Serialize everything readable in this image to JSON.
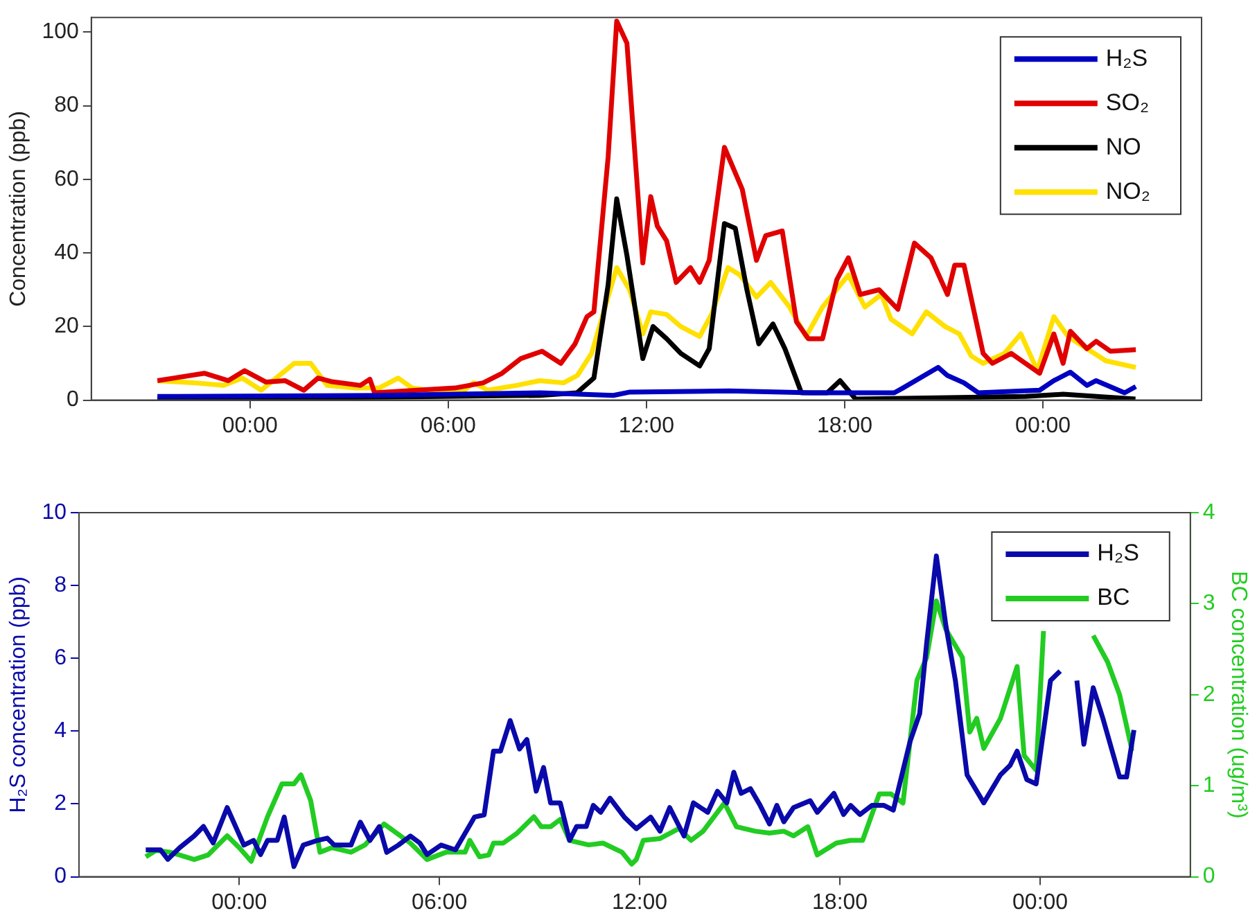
{
  "chart_data": [
    {
      "type": "line",
      "ylabel": "Concentration (ppb)",
      "xlim": [
        -4.8,
        28.8
      ],
      "ylim": [
        0,
        104
      ],
      "xticks": [
        {
          "value": 0,
          "label": "00:00"
        },
        {
          "value": 6,
          "label": "06:00"
        },
        {
          "value": 12,
          "label": "12:00"
        },
        {
          "value": 18,
          "label": "18:00"
        },
        {
          "value": 24,
          "label": "00:00"
        }
      ],
      "yticks": [
        0,
        20,
        40,
        60,
        80,
        100
      ],
      "grid": false,
      "legend": "top right",
      "marker": "none",
      "line_style": "solid",
      "series": [
        {
          "name": "H₂S",
          "color": "#0000c0",
          "x": [
            -2.8,
            4,
            8.8,
            11,
            11.5,
            14.5,
            17,
            19.5,
            19.76,
            20.83,
            21.11,
            21.61,
            22.04,
            23.9,
            24.33,
            24.83,
            25.33,
            25.61,
            26.47,
            26.81
          ],
          "values": [
            1,
            1.3,
            2,
            1.3,
            2.2,
            2.5,
            2,
            2,
            3.3,
            8.9,
            6.7,
            4.7,
            2,
            2.7,
            5.3,
            7.6,
            4,
            5.3,
            2,
            3.7
          ]
        },
        {
          "name": "SO₂",
          "color": "#e00000",
          "x": [
            -2.8,
            -1.37,
            -0.66,
            -0.16,
            0.49,
            1.06,
            1.63,
            2.06,
            2.49,
            3.34,
            3.63,
            3.77,
            5.06,
            6.2,
            7.06,
            7.63,
            8.2,
            8.84,
            9.41,
            9.84,
            10.2,
            10.41,
            10.84,
            11.1,
            11.41,
            11.89,
            12.13,
            12.33,
            12.61,
            12.9,
            13.33,
            13.61,
            13.9,
            14.36,
            14.9,
            15.33,
            15.61,
            16.11,
            16.54,
            16.9,
            17.33,
            17.76,
            18.11,
            18.47,
            19.04,
            19.61,
            20.11,
            20.61,
            21.11,
            21.33,
            21.61,
            22.19,
            22.47,
            23.04,
            23.9,
            24.33,
            24.61,
            24.83,
            25.33,
            25.61,
            26.04,
            26.81
          ],
          "values": [
            5.3,
            7.3,
            5.3,
            8,
            4.9,
            5.3,
            2.7,
            6,
            5,
            4,
            5.7,
            2,
            2.7,
            3.3,
            4.7,
            7.3,
            11.3,
            13.3,
            10,
            15.3,
            22.7,
            24,
            66,
            103,
            97,
            37.3,
            55.3,
            47.3,
            43.3,
            32,
            36,
            32,
            38,
            68.7,
            57.3,
            38,
            44.7,
            46,
            21.3,
            16.7,
            16.7,
            32.7,
            38.7,
            28.7,
            30,
            24.7,
            42.7,
            38.7,
            28.7,
            36.7,
            36.7,
            12.7,
            10,
            12.7,
            7.3,
            18,
            10,
            18.7,
            14,
            16,
            13.3,
            13.7
          ]
        },
        {
          "name": "NO",
          "color": "#000000",
          "x": [
            -2.8,
            4,
            8.77,
            9.9,
            10.41,
            10.84,
            11.1,
            11.41,
            11.89,
            12.2,
            12.61,
            13.04,
            13.61,
            13.9,
            14.36,
            14.69,
            15.04,
            15.4,
            15.83,
            16.19,
            16.69,
            17.47,
            17.86,
            18.33,
            23.47,
            24.61,
            26.8
          ],
          "values": [
            0.5,
            0.8,
            1.3,
            2,
            6,
            31.3,
            54.7,
            39.3,
            11.3,
            20,
            16.7,
            12.7,
            9.3,
            14,
            48,
            46.7,
            30,
            15.3,
            20.7,
            14,
            2,
            2,
            5.3,
            0.3,
            1,
            1.6,
            0.3
          ]
        },
        {
          "name": "NO₂",
          "color": "#ffe000",
          "x": [
            -2.8,
            -1.66,
            -0.8,
            -0.23,
            0.34,
            1.34,
            1.84,
            2.34,
            3.2,
            3.91,
            4.49,
            4.91,
            5.91,
            6.49,
            6.77,
            7.2,
            8.06,
            8.77,
            9.49,
            9.91,
            10.34,
            11.1,
            11.49,
            11.89,
            12.13,
            12.61,
            13.04,
            13.61,
            13.97,
            14.47,
            14.83,
            15.33,
            15.76,
            16.33,
            16.83,
            17.33,
            18.11,
            18.61,
            19.11,
            19.4,
            20.04,
            20.47,
            21.04,
            21.47,
            21.83,
            22.19,
            22.83,
            23.33,
            23.83,
            24.33,
            24.76,
            25.33,
            25.9,
            26.81
          ],
          "values": [
            5.3,
            4.7,
            4,
            6,
            2.7,
            10,
            10,
            4,
            3.3,
            3.3,
            6,
            3.3,
            2,
            2.7,
            4.7,
            2.7,
            4,
            5.3,
            4.7,
            6.7,
            12.7,
            36,
            30,
            18,
            24,
            23.3,
            20,
            17.3,
            23.3,
            36,
            34,
            28,
            32,
            25.3,
            17.3,
            25.3,
            34,
            25.3,
            28.7,
            22,
            18,
            24,
            20,
            18,
            12,
            10,
            12.7,
            18,
            8,
            22.7,
            17.3,
            14,
            10.7,
            8.9
          ]
        }
      ]
    },
    {
      "type": "line",
      "ylabel": "H₂S concentration (ppb)",
      "y2label": "BC concentration (ug/m³)",
      "xlim": [
        -4.8,
        28.5
      ],
      "ylim": [
        0,
        10
      ],
      "y2lim": [
        0,
        4
      ],
      "xticks": [
        {
          "value": 0,
          "label": "00:00"
        },
        {
          "value": 6,
          "label": "06:00"
        },
        {
          "value": 12,
          "label": "12:00"
        },
        {
          "value": 18,
          "label": "18:00"
        },
        {
          "value": 24,
          "label": "00:00"
        }
      ],
      "yticks": [
        0,
        2,
        4,
        6,
        8,
        10
      ],
      "y2ticks": [
        0,
        1,
        2,
        3,
        4
      ],
      "grid": false,
      "legend": "top right",
      "marker": "none",
      "line_style": "solid",
      "series": [
        {
          "name": "H₂S",
          "color": "#0a0aaa",
          "axis": "y",
          "x": [
            -2.8,
            -2.36,
            -2.14,
            -1.78,
            -1.35,
            -1.07,
            -0.78,
            -0.36,
            0.14,
            0.43,
            0.64,
            0.85,
            1.14,
            1.35,
            1.64,
            1.92,
            2.35,
            2.64,
            2.85,
            3.35,
            3.63,
            3.92,
            4.2,
            4.42,
            4.77,
            5.13,
            5.41,
            5.63,
            6.05,
            6.48,
            7.05,
            7.34,
            7.62,
            7.83,
            8.12,
            8.4,
            8.62,
            8.9,
            9.12,
            9.33,
            9.62,
            9.9,
            10.11,
            10.4,
            10.61,
            10.83,
            11.11,
            11.54,
            11.9,
            12.33,
            12.61,
            12.9,
            13.33,
            13.61,
            14.04,
            14.33,
            14.61,
            14.82,
            15.04,
            15.32,
            15.61,
            15.89,
            16.11,
            16.32,
            16.61,
            17.11,
            17.32,
            17.82,
            18.11,
            18.32,
            18.6,
            18.96,
            19.32,
            19.6,
            20.1,
            20.39,
            20.6,
            20.89,
            21.17,
            21.46,
            21.81,
            22.31,
            22.81,
            23.1,
            23.31,
            23.6,
            23.88,
            24.31,
            24.6,
            24.85,
            25.1,
            25.31,
            25.59,
            25.88,
            26.38,
            26.59,
            26.81
          ],
          "values": [
            0.74,
            0.74,
            0.48,
            0.8,
            1.12,
            1.38,
            0.93,
            1.9,
            0.87,
            1,
            0.61,
            1,
            1,
            1.64,
            0.28,
            0.87,
            1,
            1.06,
            0.87,
            0.87,
            1.5,
            1,
            1.38,
            0.67,
            0.87,
            1.12,
            0.93,
            0.61,
            0.87,
            0.74,
            1.64,
            1.7,
            3.45,
            3.45,
            4.29,
            3.51,
            3.77,
            2.35,
            3,
            2.03,
            2.03,
            1,
            1.38,
            1.38,
            1.96,
            1.77,
            2.16,
            1.64,
            1.32,
            1.64,
            1.25,
            1.9,
            1.12,
            2.03,
            1.77,
            2.35,
            2.03,
            2.87,
            2.29,
            2.42,
            1.96,
            1.45,
            1.96,
            1.51,
            1.9,
            2.09,
            1.77,
            2.29,
            1.71,
            1.96,
            1.71,
            1.96,
            1.96,
            1.83,
            3.71,
            4.48,
            6.42,
            8.81,
            6.93,
            5.39,
            2.8,
            2.03,
            2.8,
            3.06,
            3.45,
            2.67,
            2.55,
            5.39,
            5.65,
            null,
            5.39,
            3.64,
            5.19,
            4.35,
            2.74,
            2.74,
            4.03
          ]
        },
        {
          "name": "BC",
          "color": "#22cc22",
          "axis": "y2",
          "x": [
            -2.8,
            -2.49,
            -2.07,
            -1.35,
            -0.93,
            -0.36,
            0,
            0.36,
            0.85,
            1.28,
            1.64,
            1.85,
            2.14,
            2.42,
            2.78,
            3.35,
            3.77,
            4.34,
            5.13,
            5.63,
            6.2,
            6.77,
            6.91,
            7.2,
            7.48,
            7.62,
            7.91,
            8.33,
            8.83,
            9.05,
            9.33,
            9.62,
            9.9,
            10.47,
            10.9,
            11.47,
            11.76,
            11.9,
            12.11,
            12.61,
            13.18,
            13.54,
            13.9,
            14.54,
            14.9,
            15.47,
            15.89,
            16.32,
            16.61,
            17.04,
            17.32,
            17.89,
            18.32,
            18.68,
            19.18,
            19.53,
            19.89,
            20.31,
            20.6,
            20.89,
            21.17,
            21.67,
            21.89,
            22.1,
            22.31,
            22.81,
            23.31,
            23.52,
            23.88,
            24.1,
            25.1,
            25.59,
            26.02,
            26.38,
            26.74,
            26.81
          ],
          "values": [
            0.22,
            0.29,
            0.27,
            0.19,
            0.24,
            0.45,
            0.32,
            0.17,
            0.66,
            1.02,
            1.02,
            1.12,
            0.84,
            0.27,
            0.32,
            0.27,
            0.35,
            0.58,
            0.37,
            0.19,
            0.27,
            0.27,
            0.4,
            0.22,
            0.24,
            0.37,
            0.37,
            0.48,
            0.66,
            0.55,
            0.55,
            0.63,
            0.4,
            0.35,
            0.37,
            0.27,
            0.14,
            0.19,
            0.4,
            0.42,
            0.53,
            0.4,
            0.5,
            0.81,
            0.55,
            0.5,
            0.48,
            0.5,
            0.45,
            0.55,
            0.24,
            0.37,
            0.4,
            0.4,
            0.91,
            0.91,
            0.81,
            2.16,
            2.41,
            3.03,
            2.72,
            2.41,
            1.59,
            1.74,
            1.41,
            1.74,
            2.31,
            1.33,
            1.17,
            2.7,
            null,
            2.65,
            2.36,
            2,
            1.41,
            1.41
          ]
        }
      ]
    }
  ]
}
